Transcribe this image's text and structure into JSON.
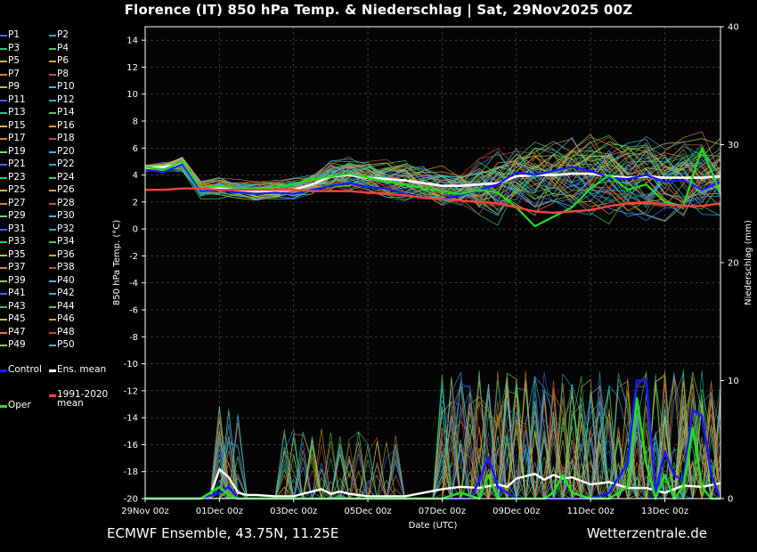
{
  "title": "Florence  (IT)  850 hPa Temp. & Niederschlag | Sat, 29Nov2025 00Z",
  "footer": {
    "left": "ECMWF Ensemble, 43.75N, 11.25E",
    "right": "Wetterzentrale.de"
  },
  "colors": {
    "control": "#1a1aff",
    "ens_mean": "#ffffff",
    "climate_mean": "#ff4040",
    "oper": "#22dd22",
    "members": [
      "#3a6bff",
      "#2aa8d8",
      "#1fc4a0",
      "#3cd060",
      "#c8c040",
      "#e0a020",
      "#d88040",
      "#c05030",
      "#8fd060",
      "#50b0e0"
    ]
  },
  "legend": {
    "members": [
      "P1",
      "P2",
      "P3",
      "P4",
      "P5",
      "P6",
      "P7",
      "P8",
      "P9",
      "P10",
      "P11",
      "P12",
      "P13",
      "P14",
      "P15",
      "P16",
      "P17",
      "P18",
      "P19",
      "P20",
      "P21",
      "P22",
      "P23",
      "P24",
      "P25",
      "P26",
      "P27",
      "P28",
      "P29",
      "P30",
      "P31",
      "P32",
      "P33",
      "P34",
      "P35",
      "P36",
      "P37",
      "P38",
      "P39",
      "P40",
      "P41",
      "P42",
      "P43",
      "P44",
      "P45",
      "P46",
      "P47",
      "P48",
      "P49",
      "P50"
    ],
    "control": "Control",
    "ens_mean": "Ens. mean",
    "climate_line1": "1991-2020",
    "climate_line2": "mean",
    "oper": "Oper"
  },
  "chart_data": {
    "type": "line",
    "xlabel": "Date (UTC)",
    "ylabel_left": "850 hPa Temp. (°C)",
    "ylabel_right": "Niederschlag (mm)",
    "x_ticks": [
      "29Nov 00z",
      "01Dec 00z",
      "03Dec 00z",
      "05Dec 00z",
      "07Dec 00z",
      "09Dec 00z",
      "11Dec 00z",
      "13Dec 00z"
    ],
    "x_range_hours": [
      0,
      372
    ],
    "y_left_range": [
      -20,
      15
    ],
    "y_left_ticks": [
      "14",
      "12",
      "10",
      "8",
      "6",
      "4",
      "2",
      "0",
      "-2",
      "-4",
      "-6",
      "-8",
      "-10",
      "-12",
      "-14",
      "-16",
      "-18",
      "-20"
    ],
    "y_right_range": [
      0,
      40
    ],
    "y_right_ticks": [
      "40",
      "30",
      "20",
      "10",
      "0"
    ],
    "grid": true,
    "temperature_series": [
      {
        "name": "Ens. mean",
        "x": [
          0,
          12,
          24,
          36,
          48,
          60,
          72,
          84,
          96,
          108,
          120,
          132,
          144,
          156,
          168,
          180,
          192,
          204,
          216,
          228,
          240,
          252,
          264,
          276,
          288,
          300,
          312,
          324,
          336,
          348,
          360,
          372
        ],
        "y": [
          4.5,
          4.6,
          4.8,
          2.9,
          3.0,
          2.9,
          2.8,
          2.8,
          2.9,
          3.3,
          3.9,
          4.0,
          3.8,
          3.7,
          3.6,
          3.4,
          3.2,
          3.2,
          3.3,
          3.4,
          3.9,
          4.0,
          4.0,
          4.1,
          4.1,
          3.9,
          3.8,
          3.9,
          3.8,
          3.8,
          3.8,
          3.9
        ]
      },
      {
        "name": "Control",
        "x": [
          0,
          12,
          24,
          36,
          48,
          60,
          72,
          84,
          96,
          108,
          120,
          132,
          144,
          156,
          168,
          180,
          192,
          204,
          216,
          228,
          240,
          252,
          264,
          276,
          288,
          300,
          312,
          324,
          336,
          348,
          360,
          372
        ],
        "y": [
          4.4,
          4.2,
          4.8,
          2.8,
          2.9,
          2.7,
          2.6,
          2.7,
          2.6,
          2.9,
          3.2,
          3.4,
          3.1,
          3.0,
          2.6,
          2.3,
          2.2,
          2.5,
          2.9,
          3.3,
          4.2,
          4.0,
          4.3,
          4.6,
          4.3,
          3.8,
          3.7,
          4.0,
          3.5,
          3.6,
          2.9,
          3.5
        ]
      },
      {
        "name": "Oper",
        "x": [
          0,
          12,
          24,
          36,
          48,
          60,
          72,
          84,
          96,
          108,
          120,
          132,
          144,
          156,
          168,
          180,
          192,
          204,
          216,
          228,
          240,
          252,
          264,
          276,
          288,
          300,
          312,
          324,
          336,
          348,
          360,
          372
        ],
        "y": [
          4.6,
          4.4,
          5.0,
          3.0,
          3.2,
          3.0,
          3.0,
          3.1,
          3.3,
          3.7,
          3.9,
          4.1,
          3.8,
          3.5,
          3.3,
          3.0,
          2.8,
          2.6,
          2.9,
          2.7,
          1.6,
          0.2,
          0.9,
          1.6,
          3.0,
          4.0,
          2.9,
          3.3,
          2.0,
          1.7,
          6.0,
          2.6
        ]
      },
      {
        "name": "1991-2020 mean",
        "x": [
          0,
          12,
          24,
          36,
          48,
          60,
          72,
          84,
          96,
          108,
          120,
          132,
          144,
          156,
          168,
          180,
          192,
          204,
          216,
          228,
          240,
          252,
          264,
          276,
          288,
          300,
          312,
          324,
          336,
          348,
          360,
          372
        ],
        "y": [
          2.9,
          2.9,
          3.0,
          3.0,
          2.9,
          2.9,
          2.9,
          2.9,
          2.9,
          2.8,
          2.8,
          2.8,
          2.7,
          2.6,
          2.5,
          2.3,
          2.2,
          2.1,
          2.0,
          1.9,
          1.6,
          1.3,
          1.2,
          1.3,
          1.4,
          1.7,
          1.9,
          2.0,
          1.8,
          1.7,
          1.7,
          1.9
        ]
      }
    ],
    "precip_series": [
      {
        "name": "Ens. mean",
        "x": [
          0,
          36,
          42,
          48,
          54,
          60,
          66,
          72,
          84,
          96,
          108,
          114,
          120,
          126,
          132,
          144,
          156,
          168,
          180,
          192,
          204,
          216,
          228,
          234,
          240,
          252,
          258,
          264,
          270,
          276,
          282,
          288,
          300,
          312,
          324,
          336,
          348,
          360,
          372
        ],
        "y": [
          0,
          0,
          0.2,
          2.5,
          1.8,
          0.5,
          0.3,
          0.3,
          0.2,
          0.2,
          0.6,
          0.8,
          0.4,
          0.6,
          0.4,
          0.2,
          0.2,
          0.2,
          0.5,
          0.8,
          1.0,
          0.9,
          1.2,
          1.0,
          1.7,
          2.1,
          1.6,
          2.0,
          1.7,
          1.8,
          1.5,
          1.2,
          1.4,
          0.9,
          0.9,
          0.5,
          1.1,
          1.0,
          1.3
        ]
      },
      {
        "name": "Control",
        "x": [
          0,
          36,
          48,
          54,
          60,
          72,
          192,
          210,
          216,
          222,
          228,
          240,
          288,
          300,
          312,
          318,
          324,
          330,
          336,
          342,
          348,
          354,
          360,
          366,
          372
        ],
        "y": [
          0,
          0,
          0.5,
          1.0,
          0,
          0,
          0,
          0,
          1.5,
          3.5,
          1.0,
          0,
          0,
          0.5,
          3.0,
          10,
          10,
          0.5,
          4.0,
          2.0,
          1.5,
          7.5,
          7.0,
          2.0,
          0
        ]
      },
      {
        "name": "Oper",
        "x": [
          0,
          36,
          48,
          54,
          60,
          72,
          192,
          204,
          216,
          222,
          228,
          240,
          258,
          264,
          270,
          276,
          288,
          300,
          312,
          318,
          324,
          330,
          336,
          342,
          348,
          354,
          360,
          366,
          372
        ],
        "y": [
          0,
          0,
          1.0,
          0.3,
          0,
          0,
          0,
          0.5,
          0,
          2.0,
          0,
          0,
          0,
          0.5,
          2.0,
          0.5,
          0,
          0,
          1.0,
          8.5,
          3.0,
          0,
          2.0,
          0,
          1.0,
          6.0,
          1.0,
          0,
          0
        ]
      }
    ]
  }
}
